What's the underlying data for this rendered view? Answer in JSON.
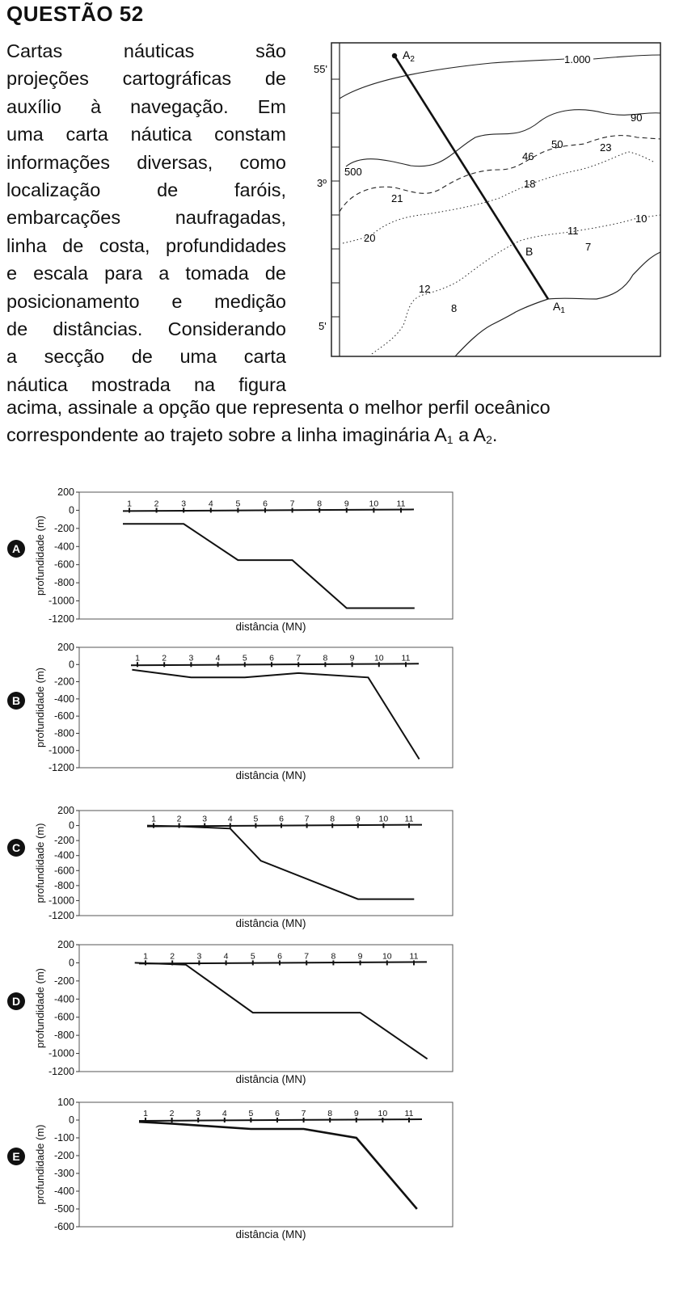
{
  "question": {
    "title": "QUESTÃO 52",
    "lines_side": [
      "Cartas náuticas são",
      "projeções cartográficas de",
      "auxílio à navegação. Em",
      "uma carta náutica constam",
      "informações diversas, como",
      "localização de faróis,",
      "embarcações naufragadas,",
      "linha de costa, profundidades",
      "e escala para a tomada de",
      "posicionamento e medição",
      "de distâncias. Considerando",
      "a secção de uma carta",
      "náutica mostrada na figura"
    ],
    "line_full_1": "acima, assinale a opção que representa o melhor perfil oceânico",
    "line_full_2_pre": "correspondente ao trajeto sobre a linha imaginária A",
    "line_full_2_sub1": "1",
    "line_full_2_mid": " a A",
    "line_full_2_sub2": "2",
    "line_full_2_end": "."
  },
  "nautical_chart": {
    "lat_labels": [
      "55'",
      "3º",
      "5'"
    ],
    "point_a2": "A",
    "point_a2_sub": "2",
    "point_a1": "A",
    "point_a1_sub": "1",
    "point_b": "B",
    "depth_labels": {
      "d1000": "1.000",
      "d90": "90",
      "d500": "500",
      "d50": "50",
      "d46": "46",
      "d23": "23",
      "d21": "21",
      "d18": "18",
      "d20": "20",
      "d11": "11",
      "d10": "10",
      "d7": "7",
      "d12": "12",
      "d8": "8"
    }
  },
  "chart_data": [
    {
      "type": "line",
      "option": "A",
      "ylabel": "profundidade (m)",
      "xlabel": "distância (MN)",
      "yticks": [
        200,
        0,
        -200,
        -400,
        -600,
        -800,
        -1000,
        -1200
      ],
      "ylim": [
        -1200,
        200
      ],
      "xticks": [
        1,
        2,
        3,
        4,
        5,
        6,
        7,
        8,
        9,
        10,
        11
      ],
      "x": [
        0,
        3,
        5,
        7,
        9,
        11.5
      ],
      "y": [
        -150,
        -150,
        -550,
        -550,
        -1080,
        -1080
      ]
    },
    {
      "type": "line",
      "option": "B",
      "ylabel": "profundidade (m)",
      "xlabel": "distância (MN)",
      "yticks": [
        200,
        0,
        -200,
        -400,
        -600,
        -800,
        -1000,
        -1200
      ],
      "ylim": [
        -1200,
        200
      ],
      "xticks": [
        1,
        2,
        3,
        4,
        5,
        6,
        7,
        8,
        9,
        10,
        11
      ],
      "x": [
        0.8,
        3,
        5,
        7,
        9.6,
        11.5
      ],
      "y": [
        -60,
        -150,
        -150,
        -100,
        -150,
        -1100
      ]
    },
    {
      "type": "line",
      "option": "C",
      "ylabel": "profundidade (m)",
      "xlabel": "distância (MN)",
      "yticks": [
        200,
        0,
        -200,
        -400,
        -600,
        -800,
        -1000,
        -1200
      ],
      "ylim": [
        -1200,
        200
      ],
      "xticks": [
        1,
        2,
        3,
        4,
        5,
        6,
        7,
        8,
        9,
        10,
        11
      ],
      "x": [
        0,
        2,
        4,
        5.2,
        9,
        11.2
      ],
      "y": [
        0,
        -10,
        -40,
        -470,
        -980,
        -980
      ]
    },
    {
      "type": "line",
      "option": "D",
      "ylabel": "profundidade (m)",
      "xlabel": "distância (MN)",
      "yticks": [
        200,
        0,
        -200,
        -400,
        -600,
        -800,
        -1000,
        -1200
      ],
      "ylim": [
        -1200,
        200
      ],
      "xticks": [
        1,
        2,
        3,
        4,
        5,
        6,
        7,
        8,
        9,
        10,
        11
      ],
      "x": [
        0.6,
        2.5,
        5,
        7,
        9,
        11.5
      ],
      "y": [
        0,
        -20,
        -550,
        -550,
        -550,
        -1060
      ]
    },
    {
      "type": "line",
      "option": "E",
      "ylabel": "profundidade (m)",
      "xlabel": "distância (MN)",
      "yticks": [
        100,
        0,
        -100,
        -200,
        -300,
        -400,
        -500,
        -600
      ],
      "ylim": [
        -600,
        100
      ],
      "xticks": [
        1,
        2,
        3,
        4,
        5,
        6,
        7,
        8,
        9,
        10,
        11
      ],
      "x": [
        0,
        2,
        5,
        7,
        9,
        11.3
      ],
      "y": [
        -10,
        -20,
        -50,
        -50,
        -100,
        -500
      ]
    }
  ]
}
